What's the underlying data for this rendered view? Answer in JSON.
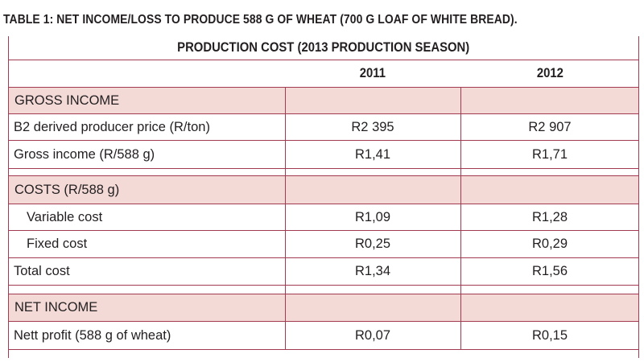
{
  "title": "TABLE 1: NET INCOME/LOSS TO PRODUCE 588 G OF WHEAT (700 G LOAF OF WHITE BREAD).",
  "table": {
    "header": "PRODUCTION COST (2013 PRODUCTION SEASON)",
    "years": [
      "2011",
      "2012"
    ],
    "sections": [
      {
        "heading": "GROSS INCOME",
        "rows": [
          {
            "label": "B2 derived producer price  (R/ton)",
            "v2011": "R2 395",
            "v2012": "R2 907"
          },
          {
            "label": "Gross income (R/588 g)",
            "v2011": "R1,41",
            "v2012": "R1,71"
          }
        ]
      },
      {
        "heading": "COSTS  (R/588 g)",
        "rows": [
          {
            "label": "Variable cost",
            "v2011": "R1,09",
            "v2012": "R1,28"
          },
          {
            "label": "Fixed cost",
            "v2011": "R0,25",
            "v2012": "R0,29"
          },
          {
            "label": "Total cost",
            "v2011": "R1,34",
            "v2012": "R1,56"
          }
        ]
      },
      {
        "heading": "NET INCOME",
        "rows": [
          {
            "label": "Nett profit (588 g of wheat)",
            "v2011": "R0,07",
            "v2012": "R0,15"
          }
        ]
      }
    ]
  },
  "colors": {
    "accent": "#a23a52",
    "section_fill": "#f3dad7"
  }
}
